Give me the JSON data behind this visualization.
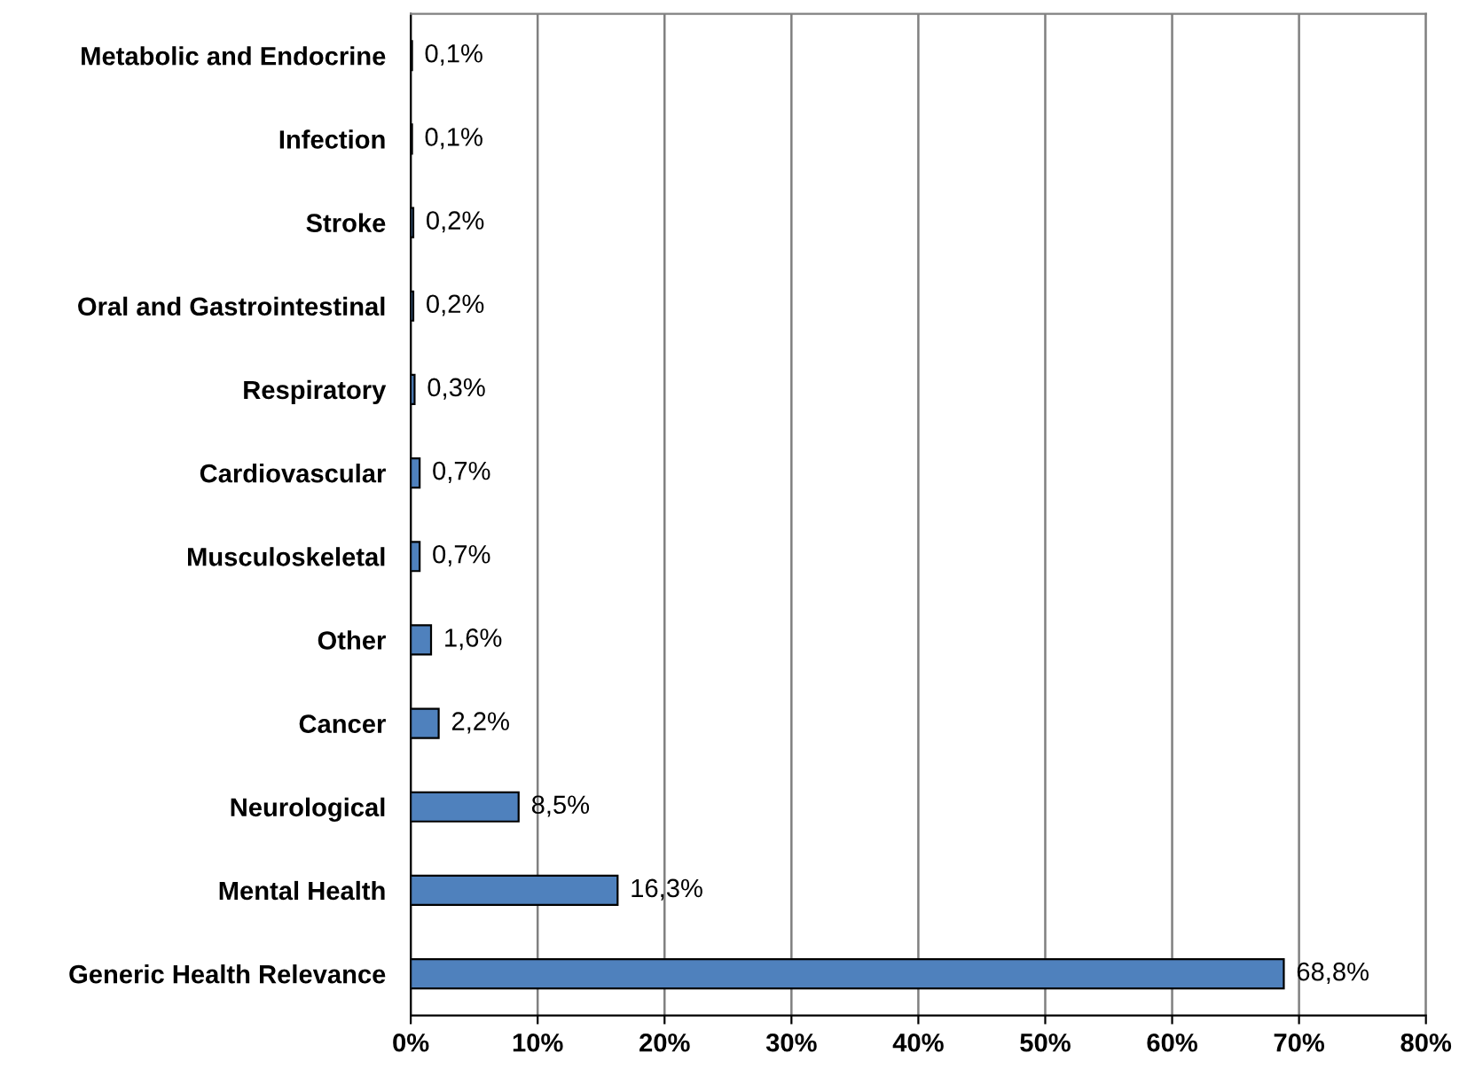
{
  "chart_data": {
    "type": "bar",
    "orientation": "horizontal",
    "categories": [
      "Metabolic and Endocrine",
      "Infection",
      "Stroke",
      "Oral and Gastrointestinal",
      "Respiratory",
      "Cardiovascular",
      "Musculoskeletal",
      "Other",
      "Cancer",
      "Neurological",
      "Mental Health",
      "Generic Health Relevance"
    ],
    "values": [
      0.1,
      0.1,
      0.2,
      0.2,
      0.3,
      0.7,
      0.7,
      1.6,
      2.2,
      8.5,
      16.3,
      68.8
    ],
    "value_labels": [
      "0,1%",
      "0,1%",
      "0,2%",
      "0,2%",
      "0,3%",
      "0,7%",
      "0,7%",
      "1,6%",
      "2,2%",
      "8,5%",
      "16,3%",
      "68,8%"
    ],
    "color": "#4f81bd",
    "xlim": [
      0,
      80
    ],
    "xticks": [
      {
        "value": 0,
        "label": "0%"
      },
      {
        "value": 10,
        "label": "10%"
      },
      {
        "value": 20,
        "label": "20%"
      },
      {
        "value": 30,
        "label": "30%"
      },
      {
        "value": 40,
        "label": "40%"
      },
      {
        "value": 50,
        "label": "50%"
      },
      {
        "value": 60,
        "label": "60%"
      },
      {
        "value": 70,
        "label": "70%"
      },
      {
        "value": 80,
        "label": "80%"
      }
    ],
    "grid": "x"
  }
}
